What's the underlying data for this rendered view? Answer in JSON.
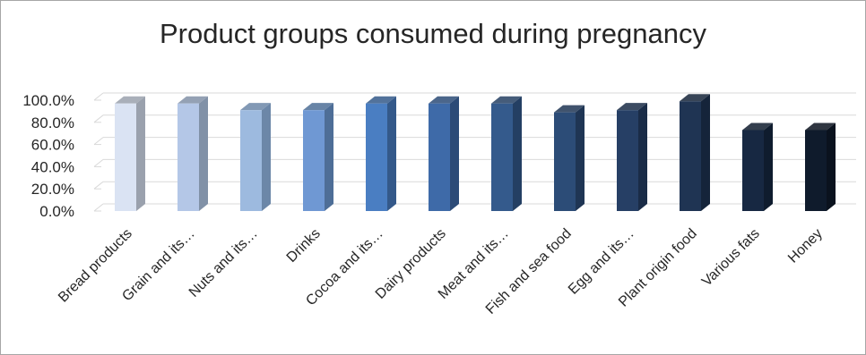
{
  "chart_data": {
    "type": "bar",
    "title": "Product groups consumed during pregnancy",
    "xlabel": "",
    "ylabel": "",
    "categories": [
      "Bread products",
      "Grain and its…",
      "Nuts and its…",
      "Drinks",
      "Cocoa and its…",
      "Dairy products",
      "Meat and its…",
      "Fish and sea food",
      "Egg and its…",
      "Plant origin food",
      "Various fats",
      "Honey"
    ],
    "values": [
      97.0,
      97.0,
      91.0,
      91.0,
      97.0,
      97.0,
      97.0,
      89.0,
      91.0,
      99.0,
      73.0,
      73.0
    ],
    "ylim": [
      0,
      100
    ],
    "yticks": [
      "0.0%",
      "20.0%",
      "40.0%",
      "60.0%",
      "80.0%",
      "100.0%"
    ],
    "grid": true,
    "legend": "none",
    "bar_colors": [
      "#dae3f3",
      "#b4c7e7",
      "#9dbadf",
      "#6f98d3",
      "#4a7ec2",
      "#3e6aa8",
      "#345a8c",
      "#2c4c77",
      "#263f65",
      "#1f3453",
      "#172842",
      "#0f1b2c"
    ],
    "side_colors": [
      "#9aa1ad",
      "#8191a7",
      "#6c87a8",
      "#4e6e97",
      "#34598a",
      "#2c4b77",
      "#243f63",
      "#1f3554",
      "#1a2c47",
      "#15243a",
      "#0f1c2e",
      "#0a121e"
    ]
  }
}
